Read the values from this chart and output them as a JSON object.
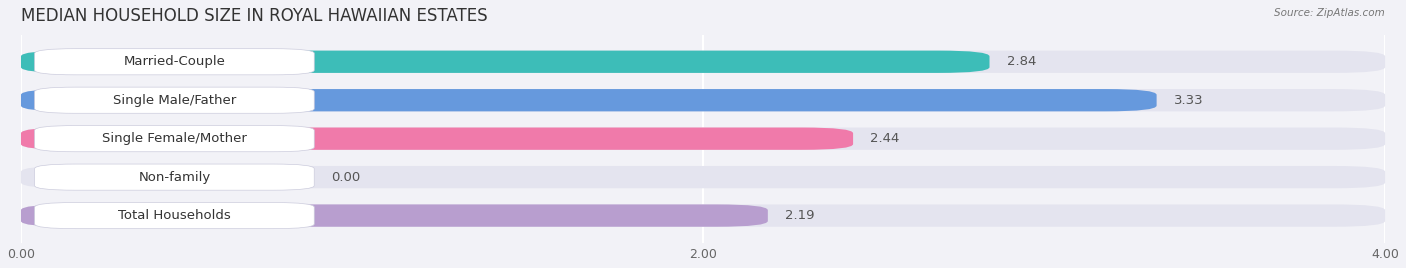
{
  "title": "MEDIAN HOUSEHOLD SIZE IN ROYAL HAWAIIAN ESTATES",
  "source": "Source: ZipAtlas.com",
  "categories": [
    "Married-Couple",
    "Single Male/Father",
    "Single Female/Mother",
    "Non-family",
    "Total Households"
  ],
  "values": [
    2.84,
    3.33,
    2.44,
    0.0,
    2.19
  ],
  "bar_colors": [
    "#3dbdb8",
    "#6699dd",
    "#f07aaa",
    "#f5c98a",
    "#b89ecf"
  ],
  "xlim": [
    0,
    4.0
  ],
  "xticks": [
    0.0,
    2.0,
    4.0
  ],
  "xtick_labels": [
    "0.00",
    "2.00",
    "4.00"
  ],
  "background_color": "#f2f2f7",
  "bar_background_color": "#e4e4ef",
  "title_fontsize": 12,
  "label_fontsize": 9.5,
  "value_fontsize": 9.5,
  "bar_height": 0.58,
  "bar_gap": 1.0
}
